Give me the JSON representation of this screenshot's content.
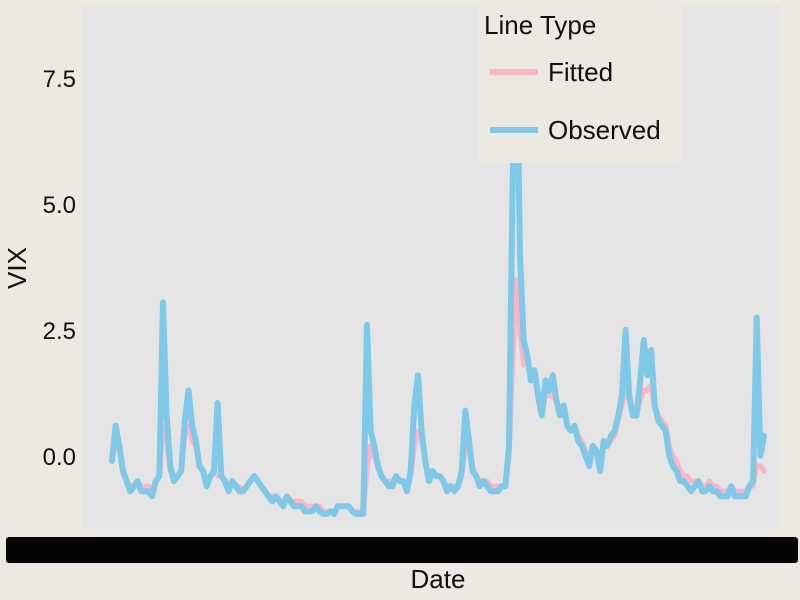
{
  "chart_data": {
    "type": "line",
    "xlabel": "Date",
    "ylabel": "VIX",
    "ylim": [
      -1.45,
      8.95
    ],
    "yticks": [
      0.0,
      2.5,
      5.0,
      7.5
    ],
    "ytick_labels": [
      "0.0",
      "2.5",
      "5.0",
      "7.5"
    ],
    "x_tick_labels_note_visible": "overlapping tick labels rendered as a solid black band",
    "grid": false,
    "legend": {
      "title": "Line Type",
      "placement": "top-right",
      "entries": [
        {
          "name": "Fitted",
          "color": "#ffb3c6"
        },
        {
          "name": "Observed",
          "color": "#7ec8e8"
        }
      ]
    },
    "panel_color": "#e5e5e5",
    "series": [
      {
        "name": "Fitted",
        "color": "#ffb3c6",
        "values": [
          -0.1,
          0.3,
          0.1,
          -0.3,
          -0.5,
          -0.6,
          -0.6,
          -0.5,
          -0.6,
          -0.6,
          -0.6,
          -0.7,
          -0.5,
          -0.4,
          0.6,
          0.3,
          -0.3,
          -0.5,
          -0.4,
          -0.3,
          0.4,
          0.6,
          0.3,
          0.2,
          -0.2,
          -0.3,
          -0.5,
          -0.4,
          -0.3,
          -0.4,
          -0.4,
          -0.5,
          -0.6,
          -0.5,
          -0.6,
          -0.6,
          -0.7,
          -0.6,
          -0.5,
          -0.4,
          -0.5,
          -0.6,
          -0.7,
          -0.8,
          -0.8,
          -0.8,
          -0.9,
          -0.9,
          -0.8,
          -0.9,
          -0.9,
          -0.9,
          -0.9,
          -1.0,
          -1.0,
          -1.0,
          -1.0,
          -1.0,
          -1.1,
          -1.1,
          -1.1,
          -1.1,
          -1.0,
          -1.0,
          -1.0,
          -1.0,
          -1.1,
          -1.1,
          -1.1,
          -1.1,
          -0.3,
          0.2,
          0.0,
          -0.2,
          -0.4,
          -0.5,
          -0.5,
          -0.5,
          -0.4,
          -0.5,
          -0.5,
          -0.6,
          -0.4,
          0.2,
          0.5,
          0.3,
          -0.1,
          -0.4,
          -0.3,
          -0.4,
          -0.4,
          -0.5,
          -0.6,
          -0.6,
          -0.6,
          -0.6,
          -0.4,
          0.1,
          0.3,
          -0.2,
          -0.4,
          -0.5,
          -0.5,
          -0.5,
          -0.6,
          -0.6,
          -0.6,
          -0.6,
          -0.6,
          0.0,
          1.8,
          3.5,
          2.5,
          1.8,
          1.9,
          1.5,
          1.6,
          1.1,
          0.8,
          1.2,
          1.2,
          1.2,
          1.1,
          0.8,
          0.9,
          0.6,
          0.5,
          0.6,
          0.4,
          0.3,
          0.1,
          0.0,
          0.2,
          0.1,
          -0.1,
          0.2,
          0.3,
          0.3,
          0.4,
          0.7,
          1.0,
          1.3,
          1.1,
          0.8,
          0.8,
          1.1,
          1.3,
          1.3,
          1.4,
          1.0,
          0.8,
          0.7,
          0.6,
          0.2,
          0.0,
          -0.1,
          -0.3,
          -0.4,
          -0.4,
          -0.5,
          -0.5,
          -0.5,
          -0.6,
          -0.6,
          -0.5,
          -0.6,
          -0.6,
          -0.7,
          -0.7,
          -0.7,
          -0.6,
          -0.7,
          -0.7,
          -0.7,
          -0.7,
          -0.6,
          -0.6,
          -0.2,
          -0.2,
          -0.3
        ]
      },
      {
        "name": "Observed",
        "color": "#7ec8e8",
        "values": [
          -0.1,
          0.6,
          0.2,
          -0.3,
          -0.5,
          -0.7,
          -0.6,
          -0.5,
          -0.7,
          -0.7,
          -0.7,
          -0.8,
          -0.5,
          -0.4,
          3.05,
          0.8,
          -0.2,
          -0.5,
          -0.4,
          -0.3,
          0.7,
          1.3,
          0.6,
          0.3,
          -0.2,
          -0.3,
          -0.6,
          -0.4,
          -0.3,
          1.05,
          -0.4,
          -0.5,
          -0.7,
          -0.5,
          -0.6,
          -0.7,
          -0.7,
          -0.6,
          -0.5,
          -0.4,
          -0.5,
          -0.6,
          -0.7,
          -0.8,
          -0.9,
          -0.8,
          -0.9,
          -1.0,
          -0.8,
          -0.9,
          -1.0,
          -1.0,
          -1.0,
          -1.1,
          -1.1,
          -1.1,
          -1.0,
          -1.1,
          -1.15,
          -1.15,
          -1.1,
          -1.15,
          -1.0,
          -1.0,
          -1.0,
          -1.0,
          -1.1,
          -1.15,
          -1.15,
          -1.15,
          2.6,
          0.5,
          0.2,
          -0.2,
          -0.4,
          -0.5,
          -0.6,
          -0.6,
          -0.4,
          -0.5,
          -0.5,
          -0.7,
          -0.3,
          1.0,
          1.6,
          0.5,
          -0.1,
          -0.5,
          -0.3,
          -0.4,
          -0.4,
          -0.5,
          -0.7,
          -0.6,
          -0.7,
          -0.6,
          -0.3,
          0.9,
          0.3,
          -0.3,
          -0.4,
          -0.6,
          -0.5,
          -0.6,
          -0.7,
          -0.7,
          -0.7,
          -0.6,
          -0.6,
          0.2,
          5.5,
          8.7,
          4.0,
          2.3,
          2.0,
          1.5,
          1.7,
          1.2,
          0.8,
          1.5,
          1.3,
          1.6,
          1.1,
          0.8,
          1.0,
          0.6,
          0.5,
          0.6,
          0.3,
          0.2,
          0.0,
          -0.2,
          0.2,
          0.1,
          -0.3,
          0.3,
          0.2,
          0.4,
          0.5,
          0.8,
          1.2,
          2.5,
          1.2,
          0.8,
          0.8,
          1.5,
          2.3,
          1.6,
          2.1,
          1.0,
          0.7,
          0.6,
          0.5,
          0.0,
          -0.2,
          -0.3,
          -0.5,
          -0.5,
          -0.6,
          -0.7,
          -0.6,
          -0.5,
          -0.7,
          -0.7,
          -0.6,
          -0.7,
          -0.7,
          -0.8,
          -0.8,
          -0.8,
          -0.6,
          -0.8,
          -0.8,
          -0.8,
          -0.8,
          -0.6,
          -0.5,
          2.75,
          0.0,
          0.4
        ]
      }
    ]
  }
}
